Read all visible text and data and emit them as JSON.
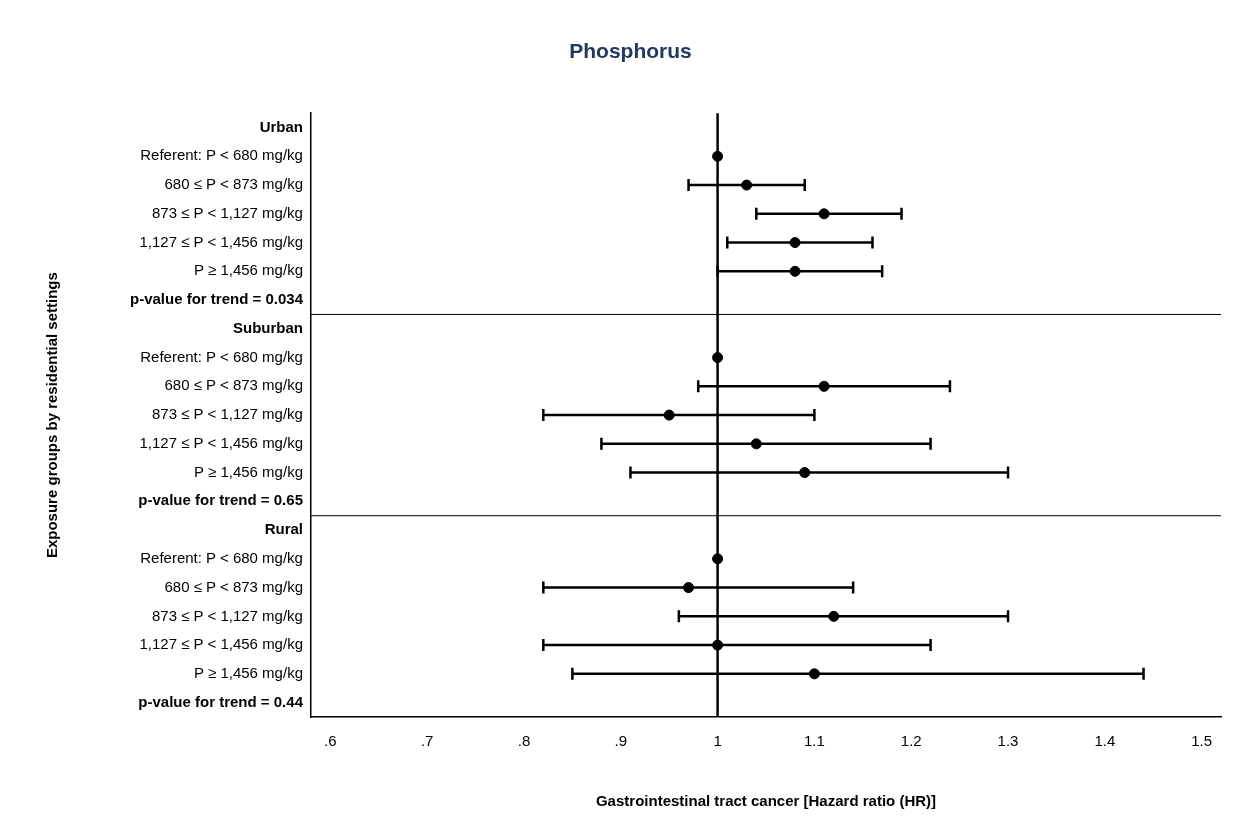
{
  "chart_data": {
    "type": "scatter",
    "title": "Phosphorus",
    "xlabel": "Gastrointestinal tract cancer [Hazard ratio (HR)]",
    "ylabel": "Exposure groups by residential settings",
    "orientation": "horizontal",
    "marker": "circle",
    "legend": false,
    "grid": false,
    "categories": [
      "Urban",
      "Referent: P < 680 mg/kg",
      "680 ≤ P < 873 mg/kg",
      "873 ≤ P < 1,127 mg/kg",
      "1,127 ≤ P < 1,456 mg/kg",
      "P ≥ 1,456 mg/kg",
      "p-value for trend = 0.034",
      "Suburban",
      "Referent: P < 680 mg/kg",
      "680 ≤ P < 873 mg/kg",
      "873 ≤ P < 1,127 mg/kg",
      "1,127 ≤ P < 1,456 mg/kg",
      "P ≥ 1,456 mg/kg",
      "p-value for trend = 0.65",
      "Rural",
      "Referent: P < 680 mg/kg",
      "680 ≤ P < 873 mg/kg",
      "873 ≤ P < 1,127 mg/kg",
      "1,127 ≤ P < 1,456 mg/kg",
      "P ≥ 1,456 mg/kg",
      "p-value for trend = 0.44"
    ],
    "series": [
      {
        "color": "#000000",
        "values": [
          null,
          1,
          1.03,
          1.11,
          1.08,
          1.08,
          null,
          null,
          1,
          1.11,
          0.95,
          1.04,
          1.09,
          null,
          null,
          1,
          0.97,
          1.12,
          1.0,
          1.1,
          null
        ],
        "errors": [
          null,
          null,
          [
            0.97,
            1.09
          ],
          [
            1.04,
            1.19
          ],
          [
            1.01,
            1.16
          ],
          [
            1.0,
            1.17
          ],
          null,
          null,
          null,
          [
            0.98,
            1.24
          ],
          [
            0.82,
            1.1
          ],
          [
            0.88,
            1.22
          ],
          [
            0.91,
            1.3
          ],
          null,
          null,
          null,
          [
            0.82,
            1.14
          ],
          [
            0.96,
            1.3
          ],
          [
            0.82,
            1.22
          ],
          [
            0.85,
            1.44
          ],
          null
        ]
      }
    ],
    "xlim": [
      0.58,
      1.52
    ],
    "xticks": [
      {
        "value": 0.6,
        "label": ".6"
      },
      {
        "value": 0.7,
        "label": ".7"
      },
      {
        "value": 0.8,
        "label": ".8"
      },
      {
        "value": 0.9,
        "label": ".9"
      },
      1,
      1.1,
      1.2,
      1.3,
      1.4,
      1.5
    ],
    "ref_lines": [
      {
        "axis": "x",
        "value": 1,
        "color": "#000000"
      }
    ]
  }
}
